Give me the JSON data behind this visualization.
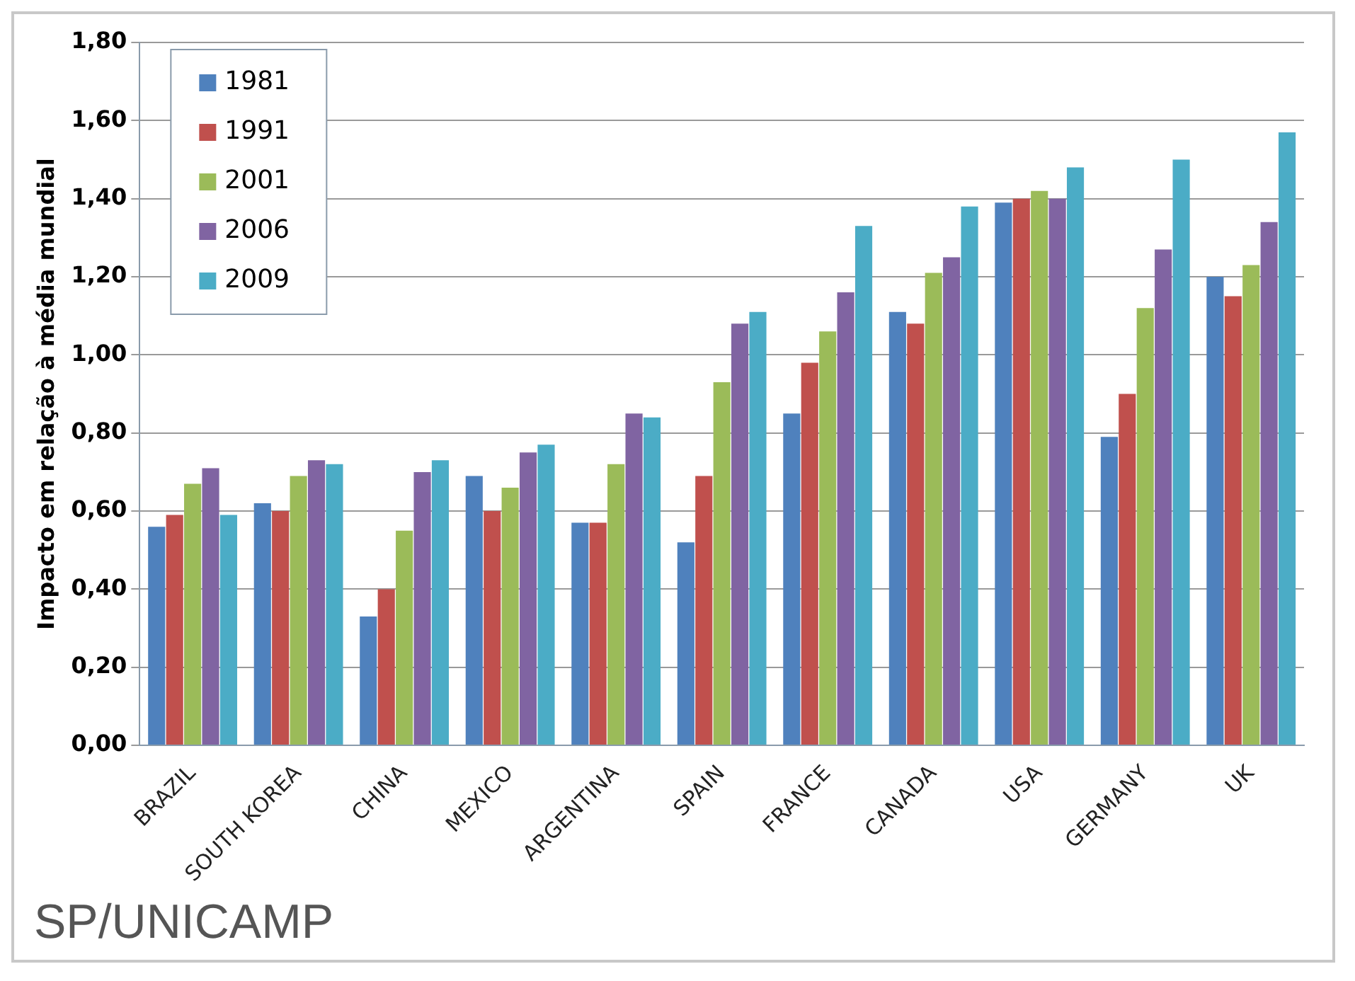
{
  "chart_data": {
    "type": "bar",
    "ylabel": "Impacto em relação à média mundial",
    "categories": [
      "BRAZIL",
      "SOUTH KOREA",
      "CHINA",
      "MEXICO",
      "ARGENTINA",
      "SPAIN",
      "FRANCE",
      "CANADA",
      "USA",
      "GERMANY",
      "UK"
    ],
    "series": [
      {
        "name": "1981",
        "color": "#4f81bd",
        "values": [
          0.56,
          0.62,
          0.33,
          0.69,
          0.57,
          0.52,
          0.85,
          1.11,
          1.39,
          0.79,
          1.2
        ]
      },
      {
        "name": "1991",
        "color": "#c0504d",
        "values": [
          0.59,
          0.6,
          0.4,
          0.6,
          0.57,
          0.69,
          0.98,
          1.08,
          1.4,
          0.9,
          1.15
        ]
      },
      {
        "name": "2001",
        "color": "#9bbb59",
        "values": [
          0.67,
          0.69,
          0.55,
          0.66,
          0.72,
          0.93,
          1.06,
          1.21,
          1.42,
          1.12,
          1.23
        ]
      },
      {
        "name": "2006",
        "color": "#8064a2",
        "values": [
          0.71,
          0.73,
          0.7,
          0.75,
          0.85,
          1.08,
          1.16,
          1.25,
          1.4,
          1.27,
          1.34
        ]
      },
      {
        "name": "2009",
        "color": "#4bacc6",
        "values": [
          0.59,
          0.72,
          0.73,
          0.77,
          0.84,
          1.11,
          1.33,
          1.38,
          1.48,
          1.5,
          1.57
        ]
      }
    ],
    "ylim": [
      0,
      1.8
    ],
    "yticks": [
      {
        "value": 0,
        "label": "0,00"
      },
      {
        "value": 0.2,
        "label": "0,20"
      },
      {
        "value": 0.4,
        "label": "0,40"
      },
      {
        "value": 0.6,
        "label": "0,60"
      },
      {
        "value": 0.8,
        "label": "0,80"
      },
      {
        "value": 1.0,
        "label": "1,00"
      },
      {
        "value": 1.2,
        "label": "1,20"
      },
      {
        "value": 1.4,
        "label": "1,40"
      },
      {
        "value": 1.6,
        "label": "1,60"
      },
      {
        "value": 1.8,
        "label": "1,80"
      }
    ],
    "grid": "y",
    "legend": "top left",
    "annotations": [
      "SP/UNICAMP"
    ]
  }
}
